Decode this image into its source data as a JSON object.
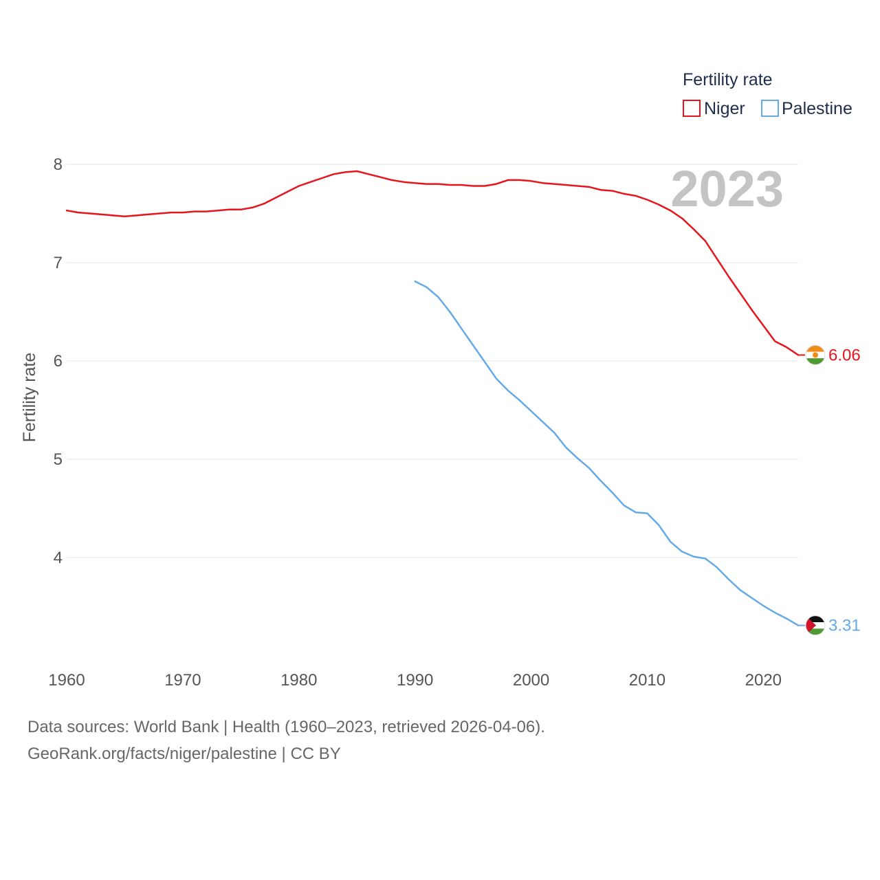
{
  "chart_data": {
    "type": "line",
    "title": "Fertility rate",
    "year_label": "2023",
    "xlabel": "",
    "ylabel": "Fertility rate",
    "xlim": [
      1960,
      2023
    ],
    "ylim": [
      3.2,
      8.2
    ],
    "x_ticks": [
      1960,
      1970,
      1980,
      1990,
      2000,
      2010,
      2020
    ],
    "y_ticks": [
      4,
      5,
      6,
      7,
      8
    ],
    "grid": true,
    "legend_position": "top-right",
    "series": [
      {
        "name": "Niger",
        "color": "#e8141b",
        "end_label": "6.06",
        "flag": "niger-flag-icon",
        "x": [
          1960,
          1961,
          1962,
          1963,
          1964,
          1965,
          1966,
          1967,
          1968,
          1969,
          1970,
          1971,
          1972,
          1973,
          1974,
          1975,
          1976,
          1977,
          1978,
          1979,
          1980,
          1981,
          1982,
          1983,
          1984,
          1985,
          1986,
          1987,
          1988,
          1989,
          1990,
          1991,
          1992,
          1993,
          1994,
          1995,
          1996,
          1997,
          1998,
          1999,
          2000,
          2001,
          2002,
          2003,
          2004,
          2005,
          2006,
          2007,
          2008,
          2009,
          2010,
          2011,
          2012,
          2013,
          2014,
          2015,
          2016,
          2017,
          2018,
          2019,
          2020,
          2021,
          2022,
          2023
        ],
        "values": [
          7.53,
          7.51,
          7.5,
          7.49,
          7.48,
          7.47,
          7.48,
          7.49,
          7.5,
          7.51,
          7.51,
          7.52,
          7.52,
          7.53,
          7.54,
          7.54,
          7.56,
          7.6,
          7.66,
          7.72,
          7.78,
          7.82,
          7.86,
          7.9,
          7.92,
          7.93,
          7.9,
          7.87,
          7.84,
          7.82,
          7.81,
          7.8,
          7.8,
          7.79,
          7.79,
          7.78,
          7.78,
          7.8,
          7.84,
          7.84,
          7.83,
          7.81,
          7.8,
          7.79,
          7.78,
          7.77,
          7.74,
          7.73,
          7.7,
          7.68,
          7.64,
          7.59,
          7.53,
          7.45,
          7.34,
          7.22,
          7.04,
          6.86,
          6.69,
          6.52,
          6.36,
          6.2,
          6.14,
          6.06
        ]
      },
      {
        "name": "Palestine",
        "color": "#64aae6",
        "end_label": "3.31",
        "flag": "palestine-flag-icon",
        "x": [
          1990,
          1991,
          1992,
          1993,
          1994,
          1995,
          1996,
          1997,
          1998,
          1999,
          2000,
          2001,
          2002,
          2003,
          2004,
          2005,
          2006,
          2007,
          2008,
          2009,
          2010,
          2011,
          2012,
          2013,
          2014,
          2015,
          2016,
          2017,
          2018,
          2019,
          2020,
          2021,
          2022,
          2023
        ],
        "values": [
          6.81,
          6.75,
          6.65,
          6.5,
          6.33,
          6.16,
          5.99,
          5.82,
          5.7,
          5.6,
          5.49,
          5.38,
          5.27,
          5.12,
          5.01,
          4.91,
          4.78,
          4.66,
          4.53,
          4.46,
          4.45,
          4.33,
          4.16,
          4.06,
          4.01,
          3.99,
          3.9,
          3.78,
          3.67,
          3.59,
          3.51,
          3.44,
          3.38,
          3.31
        ]
      }
    ]
  },
  "footer": {
    "line1": "Data sources: World Bank | Health (1960–2023, retrieved 2026-04-06).",
    "line2": "GeoRank.org/facts/niger/palestine | CC BY"
  }
}
